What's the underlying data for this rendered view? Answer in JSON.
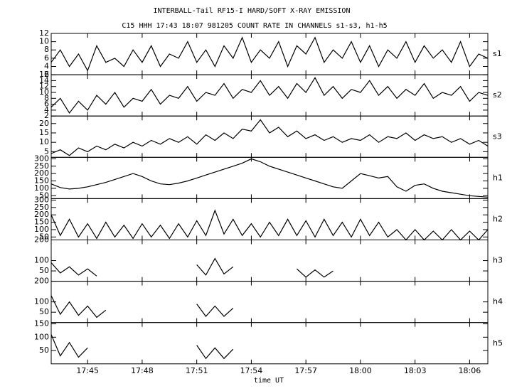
{
  "chart_data": {
    "type": "line",
    "title": "INTERBALL-Tail RF15-I HARD/SOFT X-RAY EMISSION",
    "subtitle": "C15 HHH 17:43 18:07 981205  COUNT RATE IN CHANNELS s1-s3, h1-h5",
    "xlabel": "time UT",
    "xlim": [
      1063,
      1087
    ],
    "xticks": [
      {
        "value": 1065,
        "label": "17:45"
      },
      {
        "value": 1068,
        "label": "17:48"
      },
      {
        "value": 1071,
        "label": "17:51"
      },
      {
        "value": 1074,
        "label": "17:54"
      },
      {
        "value": 1077,
        "label": "17:57"
      },
      {
        "value": 1080,
        "label": "18:00"
      },
      {
        "value": 1083,
        "label": "18:03"
      },
      {
        "value": 1086,
        "label": "18:06"
      }
    ],
    "x": [
      1063,
      1063.5,
      1064,
      1064.5,
      1065,
      1065.5,
      1066,
      1066.5,
      1067,
      1067.5,
      1068,
      1068.5,
      1069,
      1069.5,
      1070,
      1070.5,
      1071,
      1071.5,
      1072,
      1072.5,
      1073,
      1073.5,
      1074,
      1074.5,
      1075,
      1075.5,
      1076,
      1076.5,
      1077,
      1077.5,
      1078,
      1078.5,
      1079,
      1079.5,
      1080,
      1080.5,
      1081,
      1081.5,
      1082,
      1082.5,
      1083,
      1083.5,
      1084,
      1084.5,
      1085,
      1085.5,
      1086,
      1086.5,
      1087
    ],
    "series": [
      {
        "name": "s1",
        "color": "#000000",
        "ylim": [
          2,
          12
        ],
        "yticks": [
          2,
          4,
          6,
          8,
          10,
          12
        ],
        "values": [
          5,
          8,
          4,
          7,
          3,
          9,
          5,
          6,
          4,
          8,
          5,
          9,
          4,
          7,
          6,
          10,
          5,
          8,
          4,
          9,
          6,
          11,
          5,
          8,
          6,
          10,
          4,
          9,
          7,
          11,
          5,
          8,
          6,
          10,
          5,
          9,
          4,
          8,
          6,
          10,
          5,
          9,
          6,
          8,
          5,
          10,
          4,
          7,
          6
        ]
      },
      {
        "name": "s2",
        "color": "#000000",
        "ylim": [
          2,
          16
        ],
        "yticks": [
          2,
          4,
          6,
          8,
          10,
          12,
          14,
          16
        ],
        "values": [
          5,
          8,
          3,
          7,
          4,
          9,
          6,
          10,
          5,
          8,
          7,
          11,
          6,
          9,
          8,
          12,
          7,
          10,
          9,
          13,
          8,
          11,
          10,
          14,
          9,
          12,
          8,
          13,
          10,
          15,
          9,
          12,
          8,
          11,
          10,
          14,
          9,
          12,
          8,
          11,
          9,
          13,
          8,
          10,
          9,
          12,
          7,
          10,
          9
        ]
      },
      {
        "name": "s3",
        "color": "#000000",
        "ylim": [
          2,
          24
        ],
        "yticks": [
          5,
          10,
          15,
          20
        ],
        "values": [
          4,
          6,
          3,
          7,
          5,
          8,
          6,
          9,
          7,
          10,
          8,
          11,
          9,
          12,
          10,
          13,
          9,
          14,
          11,
          15,
          12,
          17,
          16,
          22,
          15,
          18,
          13,
          16,
          12,
          14,
          11,
          13,
          10,
          12,
          11,
          14,
          10,
          13,
          12,
          15,
          11,
          14,
          12,
          13,
          10,
          12,
          9,
          11,
          8
        ]
      },
      {
        "name": "h1",
        "color": "#000000",
        "ylim": [
          30,
          310
        ],
        "yticks": [
          50,
          100,
          150,
          200,
          250,
          300
        ],
        "values": [
          130,
          105,
          95,
          100,
          110,
          125,
          140,
          160,
          180,
          200,
          180,
          150,
          130,
          125,
          135,
          150,
          170,
          190,
          210,
          230,
          250,
          270,
          300,
          280,
          250,
          230,
          210,
          190,
          170,
          150,
          130,
          110,
          100,
          150,
          200,
          185,
          170,
          180,
          110,
          80,
          120,
          130,
          100,
          80,
          70,
          60,
          50,
          45,
          40
        ]
      },
      {
        "name": "h2",
        "color": "#000000",
        "ylim": [
          30,
          310
        ],
        "yticks": [
          50,
          100,
          150,
          200,
          250,
          300
        ],
        "values": [
          200,
          60,
          170,
          50,
          140,
          40,
          150,
          50,
          130,
          40,
          140,
          50,
          130,
          40,
          140,
          50,
          160,
          60,
          230,
          70,
          170,
          60,
          140,
          50,
          150,
          60,
          170,
          60,
          160,
          50,
          170,
          60,
          150,
          50,
          170,
          60,
          150,
          50,
          100,
          30,
          100,
          30,
          90,
          30,
          100,
          30,
          90,
          30,
          100
        ]
      },
      {
        "name": "h3",
        "color": "#000000",
        "ylim": [
          0,
          200
        ],
        "yticks": [
          50,
          100,
          200
        ],
        "values": [
          90,
          40,
          70,
          30,
          60,
          25,
          null,
          null,
          null,
          null,
          null,
          null,
          null,
          null,
          null,
          null,
          80,
          30,
          110,
          35,
          70,
          null,
          null,
          null,
          null,
          null,
          null,
          60,
          20,
          55,
          20,
          50,
          null,
          null,
          null,
          null,
          null,
          null,
          null,
          null,
          null,
          null,
          null,
          null,
          null,
          null,
          null,
          null,
          null
        ]
      },
      {
        "name": "h4",
        "color": "#000000",
        "ylim": [
          0,
          200
        ],
        "yticks": [
          50,
          100,
          200
        ],
        "values": [
          130,
          40,
          100,
          35,
          80,
          25,
          60,
          null,
          null,
          null,
          null,
          null,
          null,
          null,
          null,
          null,
          90,
          30,
          80,
          30,
          70,
          null,
          null,
          null,
          null,
          null,
          null,
          null,
          null,
          null,
          null,
          null,
          null,
          null,
          null,
          null,
          null,
          null,
          null,
          null,
          null,
          null,
          null,
          null,
          null,
          null,
          null,
          null,
          null
        ]
      },
      {
        "name": "h5",
        "color": "#000000",
        "ylim": [
          0,
          155
        ],
        "yticks": [
          50,
          100,
          150
        ],
        "values": [
          110,
          30,
          80,
          25,
          60,
          null,
          null,
          null,
          null,
          null,
          null,
          null,
          null,
          null,
          null,
          null,
          70,
          20,
          60,
          20,
          55,
          null,
          null,
          null,
          null,
          null,
          null,
          null,
          null,
          null,
          null,
          null,
          null,
          null,
          null,
          null,
          null,
          null,
          null,
          null,
          null,
          null,
          null,
          null,
          null,
          null,
          null,
          null,
          null
        ]
      }
    ]
  }
}
